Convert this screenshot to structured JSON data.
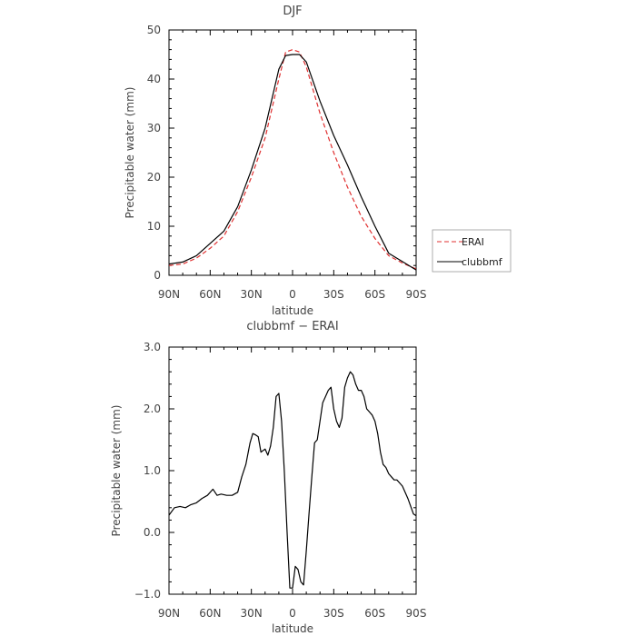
{
  "chart_data": [
    {
      "type": "line",
      "title": "DJF",
      "xlabel": "latitude",
      "ylabel": "Precipitable water  (mm)",
      "xlim": [
        90,
        -90
      ],
      "ylim": [
        0,
        50
      ],
      "x_ticks": [
        90,
        60,
        30,
        0,
        -30,
        -60,
        -90
      ],
      "x_tick_labels": [
        "90N",
        "60N",
        "30N",
        "0",
        "30S",
        "60S",
        "90S"
      ],
      "y_ticks": [
        0,
        10,
        20,
        30,
        40,
        50
      ],
      "y_tick_labels": [
        "0",
        "10",
        "20",
        "30",
        "40",
        "50"
      ],
      "legend_position": "right",
      "series": [
        {
          "name": "ERAI",
          "color": "#e03030",
          "style": "dashed",
          "x": [
            90,
            80,
            70,
            60,
            50,
            40,
            30,
            20,
            10,
            5,
            0,
            -5,
            -10,
            -20,
            -30,
            -40,
            -50,
            -60,
            -70,
            -80,
            -90
          ],
          "y": [
            2.0,
            2.3,
            3.5,
            5.5,
            8.0,
            13.0,
            20.0,
            28.0,
            40.0,
            45.5,
            46.0,
            45.5,
            42.5,
            33.0,
            25.0,
            18.0,
            12.0,
            7.5,
            4.0,
            2.5,
            1.3
          ]
        },
        {
          "name": "clubbmf",
          "color": "#000000",
          "style": "solid",
          "x": [
            90,
            80,
            70,
            60,
            50,
            40,
            30,
            20,
            10,
            5,
            0,
            -5,
            -10,
            -20,
            -30,
            -40,
            -50,
            -60,
            -70,
            -80,
            -90
          ],
          "y": [
            2.3,
            2.7,
            4.0,
            6.5,
            9.0,
            14.0,
            21.5,
            30.0,
            42.0,
            44.8,
            45.0,
            45.0,
            43.5,
            35.5,
            28.5,
            22.5,
            16.0,
            10.0,
            4.5,
            2.8,
            1.1
          ]
        }
      ]
    },
    {
      "type": "line",
      "title": "clubbmf  −  ERAI",
      "xlabel": "latitude",
      "ylabel": "Precipitable water  (mm)",
      "xlim": [
        90,
        -90
      ],
      "ylim": [
        -1.0,
        3.0
      ],
      "x_ticks": [
        90,
        60,
        30,
        0,
        -30,
        -60,
        -90
      ],
      "x_tick_labels": [
        "90N",
        "60N",
        "30N",
        "0",
        "30S",
        "60S",
        "90S"
      ],
      "y_ticks": [
        -1.0,
        0.0,
        1.0,
        2.0,
        3.0
      ],
      "y_tick_labels": [
        "−1.0",
        "0.0",
        "1.0",
        "2.0",
        "3.0"
      ],
      "series": [
        {
          "name": "clubbmf - ERAI",
          "color": "#000000",
          "style": "solid",
          "x": [
            90,
            86,
            82,
            78,
            74,
            70,
            66,
            62,
            58,
            55,
            52,
            48,
            44,
            40,
            37,
            34,
            31,
            29,
            27,
            25,
            23,
            20,
            18,
            16,
            14,
            12,
            10,
            8,
            6,
            4,
            2,
            0,
            -2,
            -4,
            -6,
            -8,
            -10,
            -12,
            -14,
            -16,
            -18,
            -20,
            -22,
            -24,
            -26,
            -28,
            -30,
            -32,
            -34,
            -36,
            -38,
            -40,
            -42,
            -44,
            -46,
            -48,
            -50,
            -52,
            -54,
            -56,
            -58,
            -60,
            -62,
            -64,
            -66,
            -68,
            -70,
            -72,
            -74,
            -76,
            -78,
            -80,
            -84,
            -88,
            -90
          ],
          "y": [
            0.28,
            0.4,
            0.42,
            0.4,
            0.45,
            0.48,
            0.55,
            0.6,
            0.7,
            0.6,
            0.62,
            0.6,
            0.6,
            0.65,
            0.9,
            1.1,
            1.45,
            1.6,
            1.58,
            1.55,
            1.3,
            1.35,
            1.25,
            1.4,
            1.7,
            2.2,
            2.25,
            1.8,
            1.0,
            0.0,
            -0.9,
            -0.9,
            -0.55,
            -0.6,
            -0.8,
            -0.85,
            -0.3,
            0.3,
            0.9,
            1.45,
            1.5,
            1.8,
            2.1,
            2.2,
            2.3,
            2.35,
            2.0,
            1.8,
            1.7,
            1.85,
            2.35,
            2.5,
            2.6,
            2.55,
            2.4,
            2.3,
            2.3,
            2.2,
            2.0,
            1.95,
            1.9,
            1.8,
            1.6,
            1.3,
            1.1,
            1.05,
            0.95,
            0.9,
            0.85,
            0.85,
            0.8,
            0.75,
            0.55,
            0.3,
            0.27
          ]
        }
      ]
    }
  ]
}
